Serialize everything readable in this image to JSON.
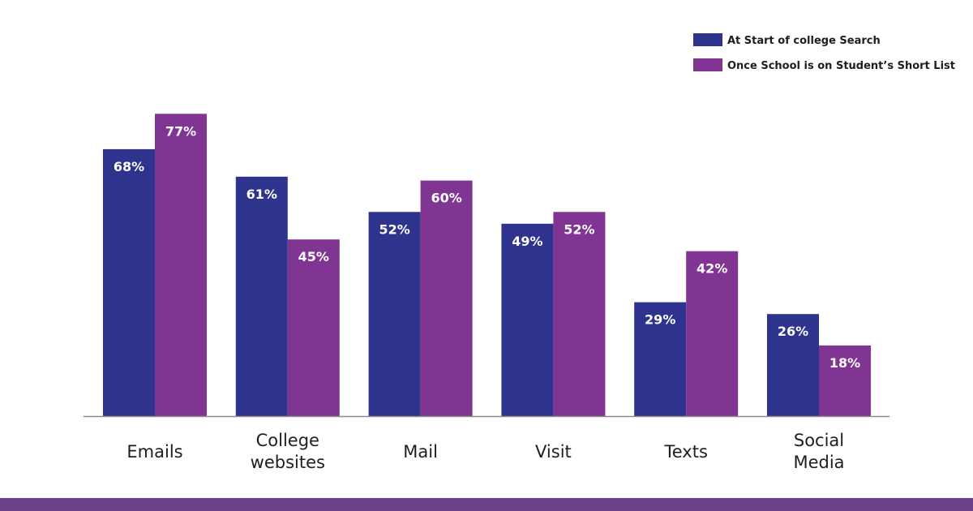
{
  "colors": {
    "series_1": "#2e348e",
    "series_2": "#813593",
    "axis": "#8a8a8a",
    "category_text": "#1e1e1e",
    "value_text": "#ffffff",
    "legend_text": "#1e1e1e",
    "bottom_bar": "#6b4189"
  },
  "chart_data": {
    "type": "bar",
    "title": "",
    "xlabel": "",
    "ylabel": "",
    "ylim": [
      0,
      100
    ],
    "grid": false,
    "legend": "top-right",
    "categories": [
      [
        "Emails"
      ],
      [
        "College",
        "websites"
      ],
      [
        "Mail"
      ],
      [
        "Visit"
      ],
      [
        "Texts"
      ],
      [
        "Social",
        "Media"
      ]
    ],
    "series": [
      {
        "name": "At Start of college Search",
        "values": [
          68,
          61,
          52,
          49,
          29,
          26
        ],
        "labels": [
          "68%",
          "61%",
          "52%",
          "49%",
          "29%",
          "26%"
        ]
      },
      {
        "name": "Once School is on Student’s Short List",
        "values": [
          77,
          45,
          60,
          52,
          42,
          18
        ],
        "labels": [
          "77%",
          "45%",
          "60%",
          "52%",
          "42%",
          "18%"
        ]
      }
    ]
  }
}
